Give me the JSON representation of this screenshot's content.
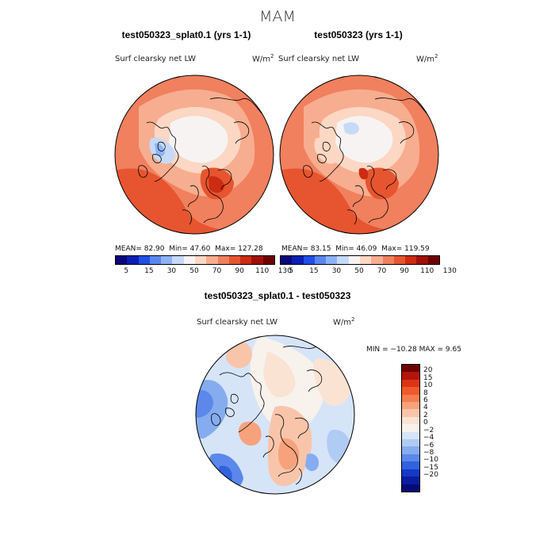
{
  "season": "MAM",
  "panels": [
    {
      "title": "test050323_splat0.1 (yrs 1-1)",
      "var_label": "Surf clearsky net LW",
      "units": "W/m",
      "units_sup": "2",
      "stats": {
        "mean": "MEAN=   82.90",
        "min": "Min=   47.60",
        "max": "Max=  127.28"
      }
    },
    {
      "title": "test050323 (yrs 1-1)",
      "var_label": "Surf clearsky net LW",
      "units": "W/m",
      "units_sup": "2",
      "stats": {
        "mean": "MEAN=   83.15",
        "min": "Min=   46.09",
        "max": "Max=  119.59"
      }
    }
  ],
  "horizontal_colorbar": {
    "ticks": [
      "5",
      "15",
      "30",
      "50",
      "70",
      "90",
      "110",
      "130"
    ],
    "colors": [
      "#08087a",
      "#0b1fb3",
      "#1f4fe6",
      "#5b86f0",
      "#8fb2f5",
      "#c6daf8",
      "#f7f3f2",
      "#fbd7c4",
      "#f7ad8f",
      "#f0805e",
      "#e6552f",
      "#cc2b14",
      "#a11008",
      "#6e0000"
    ]
  },
  "diff": {
    "title": "test050323_splat0.1 - test050323",
    "var_label": "Surf clearsky net LW",
    "units": "W/m",
    "units_sup": "2",
    "stats": "MIN = −10.28 MAX =    9.65",
    "colorbar": {
      "ticks": [
        "20",
        "15",
        "10",
        "8",
        "6",
        "4",
        "2",
        "0",
        "−2",
        "−4",
        "−6",
        "−8",
        "−10",
        "−15",
        "−20"
      ],
      "colors": [
        "#6e0000",
        "#b3150a",
        "#dc3515",
        "#ef5a2b",
        "#f57d50",
        "#f7a27c",
        "#f9c5aa",
        "#fbe3d4",
        "#f7f2ec",
        "#d6e4f8",
        "#b0cbf4",
        "#85acef",
        "#5b88ea",
        "#3162dd",
        "#1339c6",
        "#0a1d9e",
        "#070a78"
      ]
    }
  }
}
